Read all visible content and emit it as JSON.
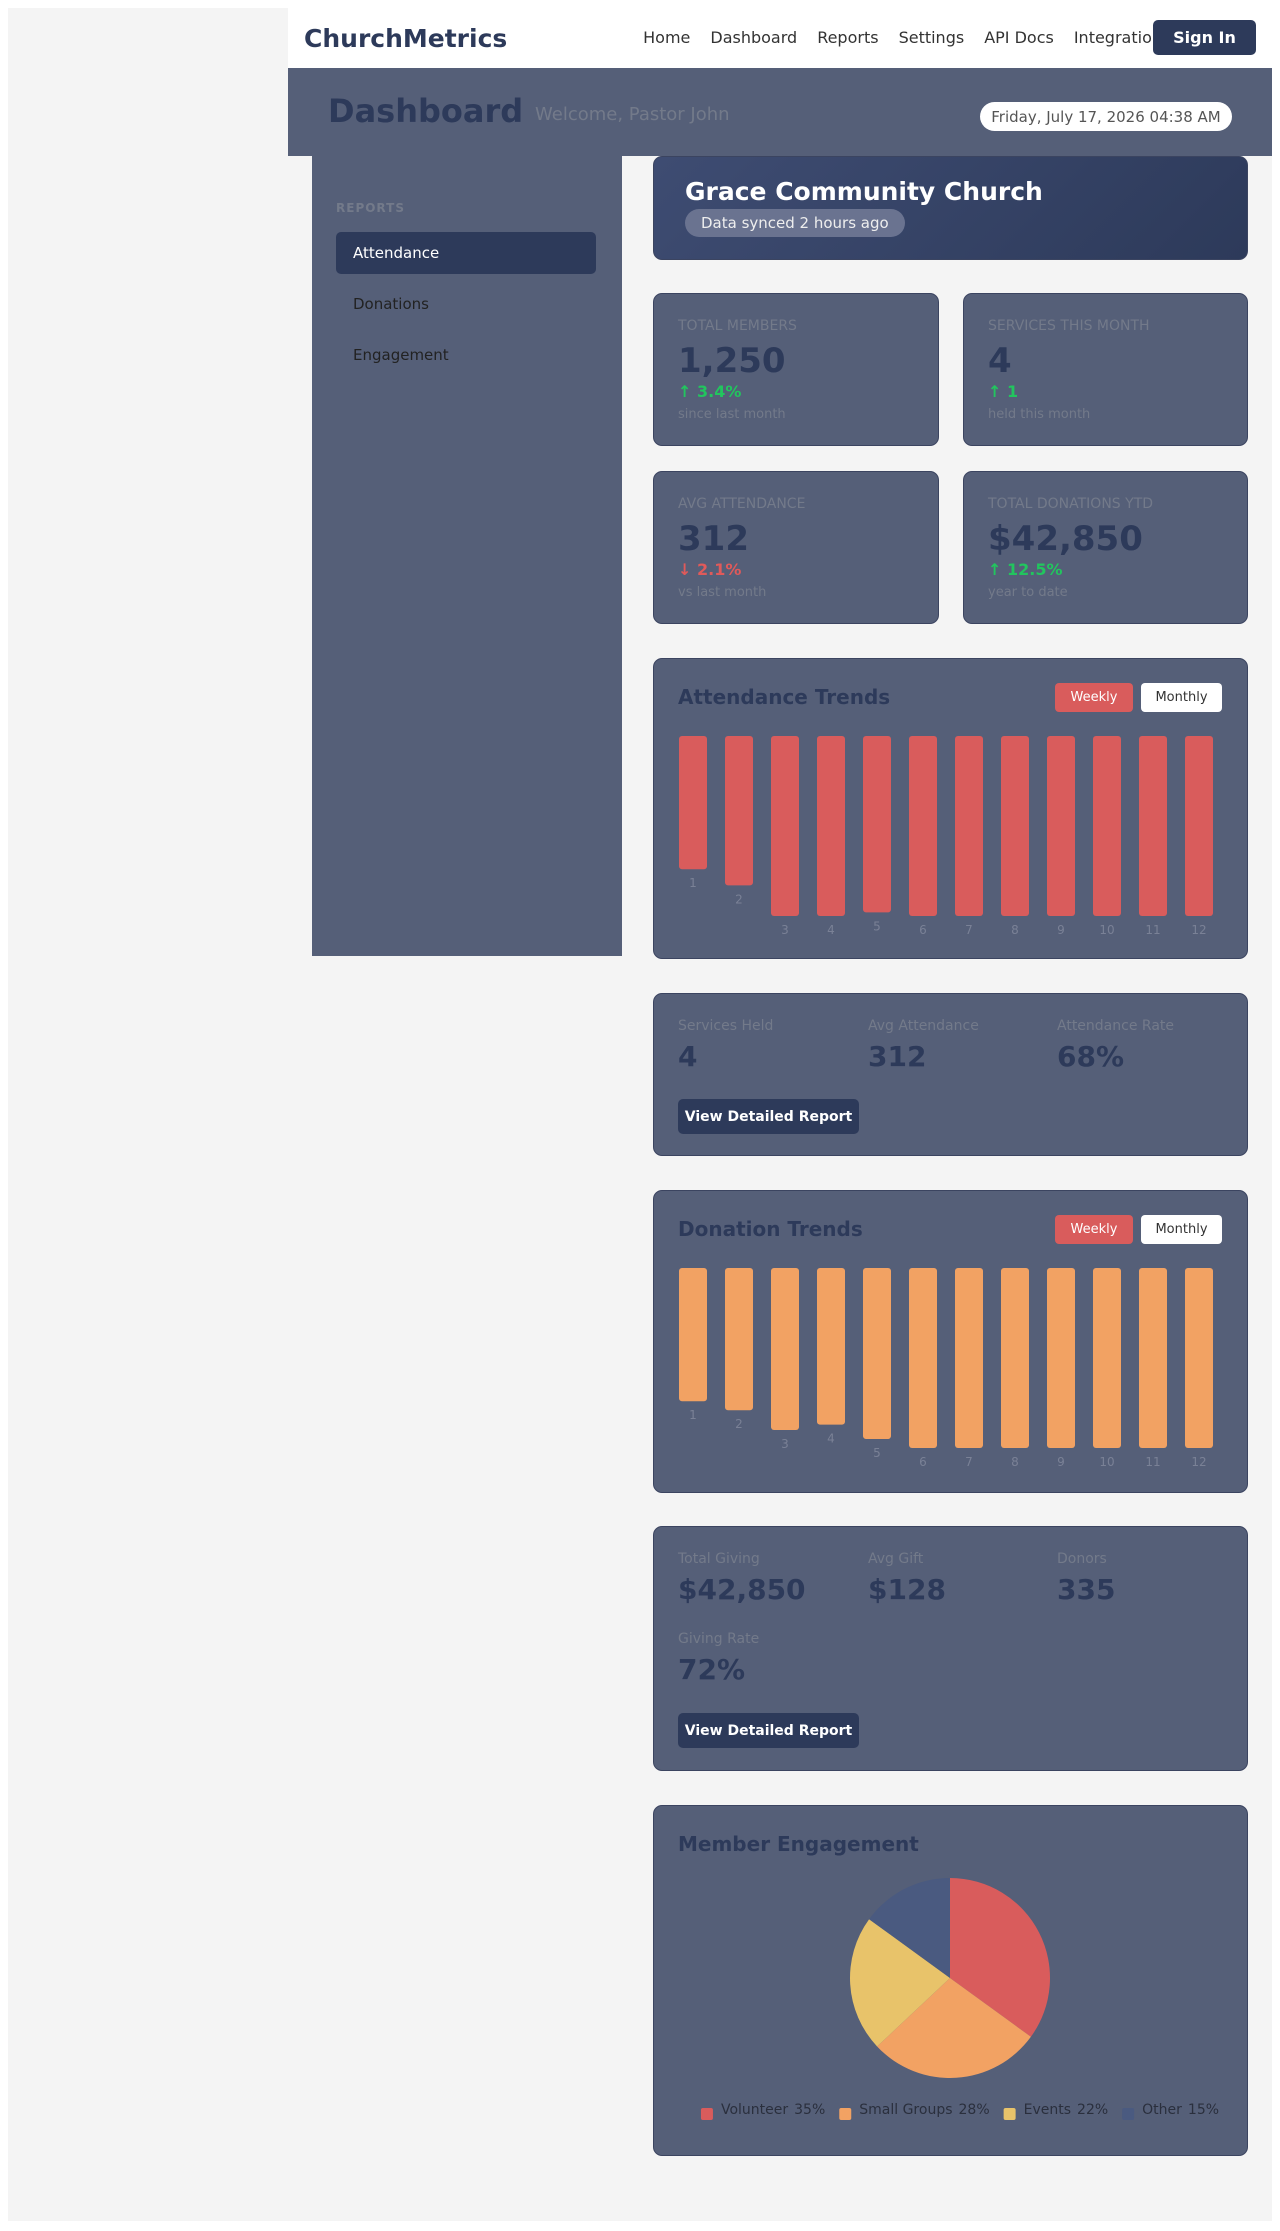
{
  "nav": {
    "brand": "ChurchMetrics",
    "links": [
      "Home",
      "Dashboard",
      "Reports",
      "Settings",
      "API Docs",
      "Integration"
    ],
    "sign_in": "Sign In"
  },
  "header": {
    "title": "Dashboard",
    "welcome": "Welcome, Pastor John",
    "date": "Friday, July 17, 2026 04:38 AM"
  },
  "sidebar": {
    "heading": "REPORTS",
    "items": [
      "Attendance",
      "Donations",
      "Engagement"
    ]
  },
  "church": {
    "name": "Grace Community Church",
    "sync": "Data synced 2 hours ago"
  },
  "stats": [
    {
      "label": "TOTAL MEMBERS",
      "value": "1,250",
      "change": "↑ 3.4%",
      "note": "since last month",
      "trend": "up"
    },
    {
      "label": "SERVICES THIS MONTH",
      "value": "4",
      "change": "↑ 1",
      "note": "held this month",
      "trend": "up"
    },
    {
      "label": "AVG ATTENDANCE",
      "value": "312",
      "change": "↓ 2.1%",
      "note": "vs last month",
      "trend": "down"
    },
    {
      "label": "TOTAL DONATIONS YTD",
      "value": "$42,850",
      "change": "↑ 12.5%",
      "note": "year to date",
      "trend": "up"
    }
  ],
  "chart_toggles": [
    [
      "Weekly",
      "Monthly"
    ],
    [
      "Weekly",
      "Monthly"
    ]
  ],
  "attendance_summary": {
    "metrics": [
      {
        "label": "Services Held",
        "value": "4"
      },
      {
        "label": "Avg Attendance",
        "value": "312"
      },
      {
        "label": "Attendance Rate",
        "value": "68%"
      }
    ],
    "button": "View Detailed Report"
  },
  "donation_summary": {
    "metrics": [
      {
        "label": "Total Giving",
        "value": "$42,850"
      },
      {
        "label": "Avg Gift",
        "value": "$128"
      },
      {
        "label": "Donors",
        "value": "335"
      },
      {
        "label": "Giving Rate",
        "value": "72%"
      }
    ],
    "button": "View Detailed Report"
  },
  "chart_data": [
    {
      "type": "bar",
      "title": "Attendance Trends",
      "categories": [
        "1",
        "2",
        "3",
        "4",
        "5",
        "6",
        "7",
        "8",
        "9",
        "10",
        "11",
        "12"
      ],
      "values": [
        74,
        83,
        100,
        100,
        98,
        100,
        100,
        100,
        100,
        100,
        100,
        100
      ],
      "color": "#d95c5c"
    },
    {
      "type": "bar",
      "title": "Donation Trends",
      "categories": [
        "1",
        "2",
        "3",
        "4",
        "5",
        "6",
        "7",
        "8",
        "9",
        "10",
        "11",
        "12"
      ],
      "values": [
        74,
        79,
        90,
        87,
        95,
        100,
        100,
        100,
        100,
        100,
        100,
        100
      ],
      "color": "#f2a263"
    },
    {
      "type": "pie",
      "title": "Member Engagement",
      "categories": [
        "Volunteer",
        "Small Groups",
        "Events",
        "Other"
      ],
      "values": [
        35,
        28,
        22,
        15
      ],
      "value_labels": [
        "35%",
        "28%",
        "22%",
        "15%"
      ],
      "colors": [
        "#d95c5c",
        "#f2a263",
        "#e8c36a",
        "#4a5a80"
      ]
    }
  ]
}
